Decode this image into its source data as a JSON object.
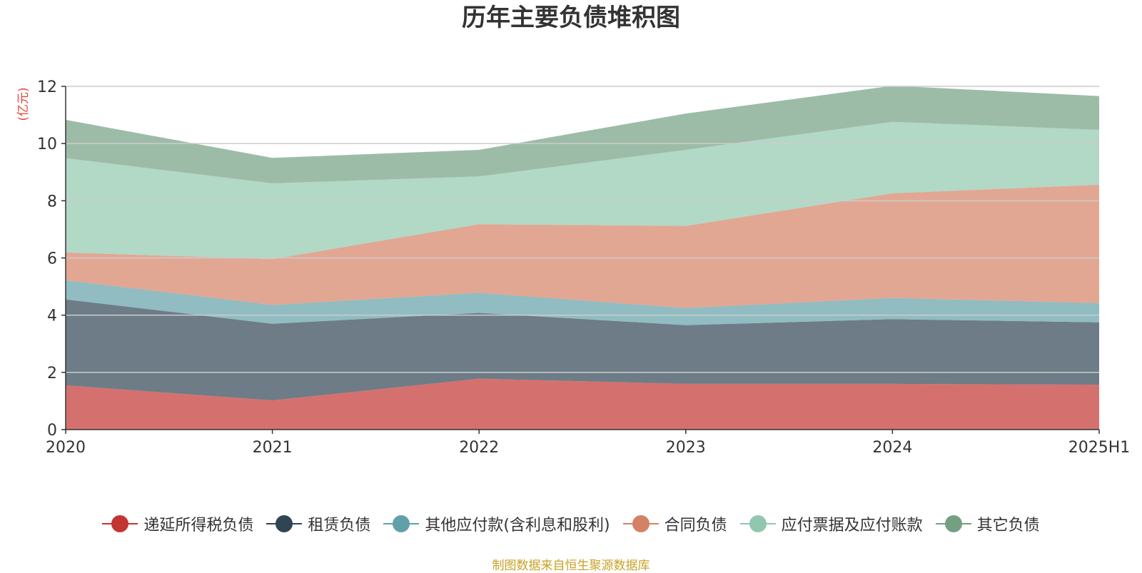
{
  "title": "历年主要负债堆积图",
  "source_note": "制图数据来自恒生聚源数据库",
  "chart_data": {
    "type": "area",
    "stacked": true,
    "title": "历年主要负债堆积图",
    "ylabel": "(亿元)",
    "xlabel": "",
    "categories": [
      "2020",
      "2021",
      "2022",
      "2023",
      "2024",
      "2025H1"
    ],
    "ylim": [
      0,
      12
    ],
    "yticks": [
      0,
      2,
      4,
      6,
      8,
      10,
      12
    ],
    "grid": true,
    "legend_position": "bottom",
    "series": [
      {
        "name": "递延所得税负债",
        "color": "#c23531",
        "values": [
          1.55,
          1.02,
          1.78,
          1.6,
          1.6,
          1.57
        ]
      },
      {
        "name": "租赁负债",
        "color": "#2f4554",
        "values": [
          3.0,
          2.68,
          2.3,
          2.05,
          2.26,
          2.18
        ]
      },
      {
        "name": "其他应付款(含利息和股利)",
        "color": "#61a0a8",
        "values": [
          0.67,
          0.66,
          0.7,
          0.6,
          0.74,
          0.67
        ]
      },
      {
        "name": "合同负债",
        "color": "#d48265",
        "values": [
          0.97,
          1.6,
          2.4,
          2.87,
          3.66,
          4.14
        ]
      },
      {
        "name": "应付票据及应付账款",
        "color": "#91c7ae",
        "values": [
          3.3,
          2.65,
          1.67,
          2.66,
          2.5,
          1.92
        ]
      },
      {
        "name": "其它负债",
        "color": "#749f83",
        "values": [
          1.34,
          0.89,
          0.93,
          1.27,
          1.26,
          1.18
        ]
      }
    ]
  }
}
